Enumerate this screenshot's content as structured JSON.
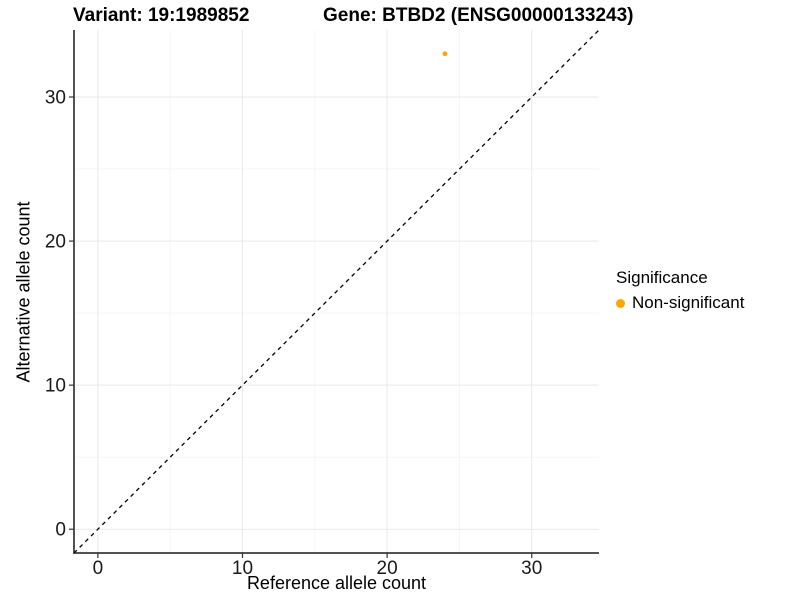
{
  "titles": {
    "variant": "Variant: 19:1989852",
    "gene": "Gene: BTBD2 (ENSG00000133243)"
  },
  "chart_data": {
    "type": "scatter",
    "xlabel": "Reference allele count",
    "ylabel": "Alternative allele count",
    "xlim": [
      -1.65,
      34.65
    ],
    "ylim": [
      -1.65,
      34.65
    ],
    "x_ticks": [
      0,
      10,
      20,
      30
    ],
    "y_ticks": [
      0,
      10,
      20,
      30
    ],
    "x_minor_ticks": [
      5,
      15,
      25
    ],
    "y_minor_ticks": [
      5,
      15,
      25
    ],
    "grid": "major-and-minor",
    "points": [
      {
        "x": 24,
        "y": 33,
        "series": "Non-significant"
      }
    ],
    "reference_line": {
      "kind": "identity",
      "style": "dashed"
    },
    "legend": {
      "title": "Significance",
      "position": "right",
      "items": [
        {
          "label": "Non-significant",
          "color": "#FFA500"
        }
      ]
    },
    "colors": {
      "point": "#FFA500",
      "axis_line": "#1a1a1a",
      "tick": "#333333",
      "tick_label": "#1a1a1a",
      "grid_major": "#e9e9e9",
      "grid_minor": "#f5f5f5",
      "reference_line": "#000000"
    }
  }
}
